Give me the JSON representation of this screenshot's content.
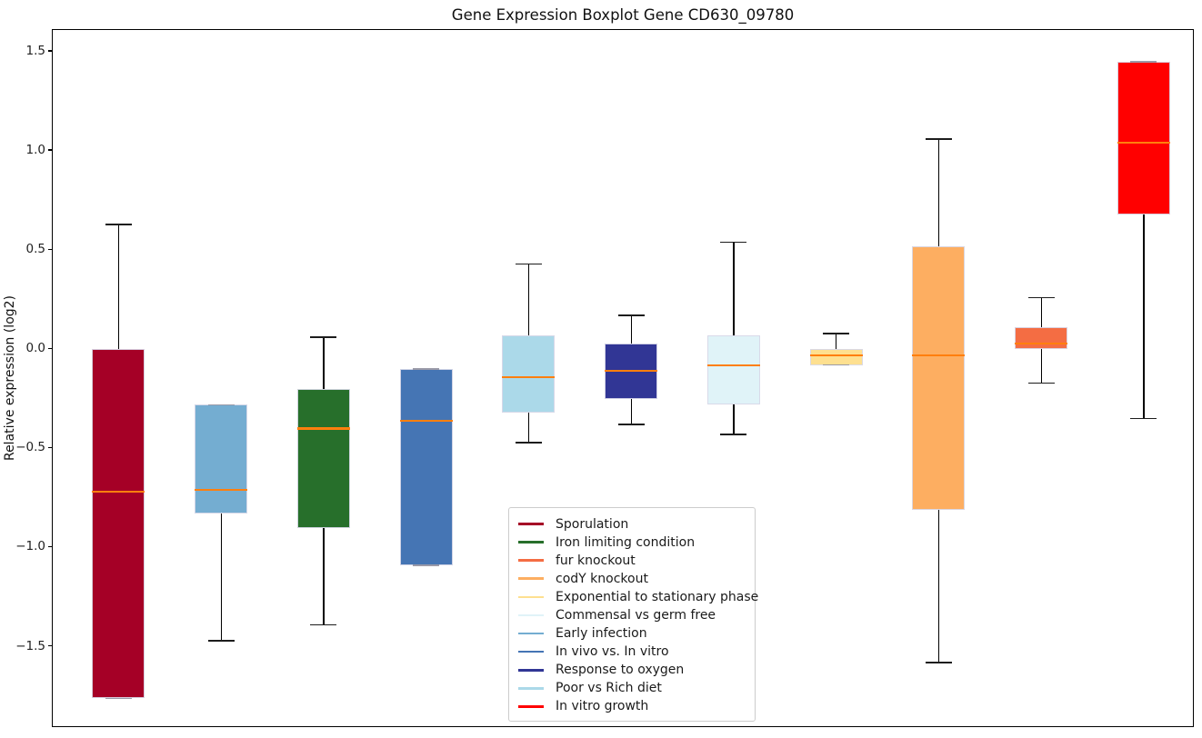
{
  "title": "Gene Expression Boxplot Gene CD630_09780",
  "y_axis": {
    "label": "Relative expression (log2)",
    "tick_labels": [
      "1.5",
      "1.0",
      "0.5",
      "0.0",
      "−0.5",
      "−1.0",
      "−1.5"
    ],
    "tick_values": [
      1.5,
      1.0,
      0.5,
      0.0,
      -0.5,
      -1.0,
      -1.5
    ]
  },
  "chart_data": {
    "type": "boxplot",
    "title": "Gene Expression Boxplot Gene CD630_09780",
    "ylabel": "Relative expression (log2)",
    "ylim": [
      -1.91,
      1.61
    ],
    "grid": false,
    "x_tick_labels": [],
    "median_color": "#ff7f0e",
    "whisker_color": "#000000",
    "legend_position": "lower center-left inside axes",
    "series": [
      {
        "name": "Sporulation",
        "color": "#A50026",
        "whislo": -1.76,
        "q1": -1.76,
        "med": -0.72,
        "q3": 0.0,
        "whishi": 0.63
      },
      {
        "name": "Early infection",
        "color": "#74ADD1",
        "whislo": -1.47,
        "q1": -0.83,
        "med": -0.71,
        "q3": -0.28,
        "whishi": -0.28
      },
      {
        "name": "Iron limiting condition",
        "color": "#276F2B",
        "whislo": -1.39,
        "q1": -0.9,
        "med": -0.4,
        "q3": -0.2,
        "whishi": 0.06
      },
      {
        "name": "In vivo vs. In vitro",
        "color": "#4575B4",
        "whislo": -1.09,
        "q1": -1.09,
        "med": -0.36,
        "q3": -0.1,
        "whishi": -0.1
      },
      {
        "name": "Poor vs Rich diet",
        "color": "#ABD9E9",
        "whislo": -0.47,
        "q1": -0.32,
        "med": -0.14,
        "q3": 0.07,
        "whishi": 0.43
      },
      {
        "name": "Response to oxygen",
        "color": "#313695",
        "whislo": -0.38,
        "q1": -0.25,
        "med": -0.11,
        "q3": 0.03,
        "whishi": 0.17
      },
      {
        "name": "Commensal vs germ free",
        "color": "#E0F3F8",
        "whislo": -0.43,
        "q1": -0.28,
        "med": -0.08,
        "q3": 0.07,
        "whishi": 0.54
      },
      {
        "name": "Exponential to stationary phase",
        "color": "#FEE090",
        "whislo": -0.08,
        "q1": -0.08,
        "med": -0.03,
        "q3": 0.0,
        "whishi": 0.08
      },
      {
        "name": "codY knockout",
        "color": "#FDAE61",
        "whislo": -1.58,
        "q1": -0.81,
        "med": -0.03,
        "q3": 0.52,
        "whishi": 1.06
      },
      {
        "name": "fur knockout",
        "color": "#F46D43",
        "whislo": -0.17,
        "q1": 0.0,
        "med": 0.03,
        "q3": 0.11,
        "whishi": 0.26
      },
      {
        "name": "In vitro growth",
        "color": "#FF0000",
        "whislo": -0.35,
        "q1": 0.68,
        "med": 1.04,
        "q3": 1.45,
        "whishi": 1.45
      }
    ],
    "legend": [
      {
        "label": "Sporulation",
        "color": "#A50026"
      },
      {
        "label": "Iron limiting condition",
        "color": "#276F2B"
      },
      {
        "label": "fur knockout",
        "color": "#F46D43"
      },
      {
        "label": "codY knockout",
        "color": "#FDAE61"
      },
      {
        "label": "Exponential to stationary phase",
        "color": "#FEE090"
      },
      {
        "label": "Commensal vs germ free",
        "color": "#E0F3F8"
      },
      {
        "label": "Early infection",
        "color": "#74ADD1"
      },
      {
        "label": "In vivo vs. In vitro",
        "color": "#4575B4"
      },
      {
        "label": "Response to oxygen",
        "color": "#313695"
      },
      {
        "label": "Poor vs Rich diet",
        "color": "#ABD9E9"
      },
      {
        "label": "In vitro growth",
        "color": "#FF0000"
      }
    ]
  }
}
